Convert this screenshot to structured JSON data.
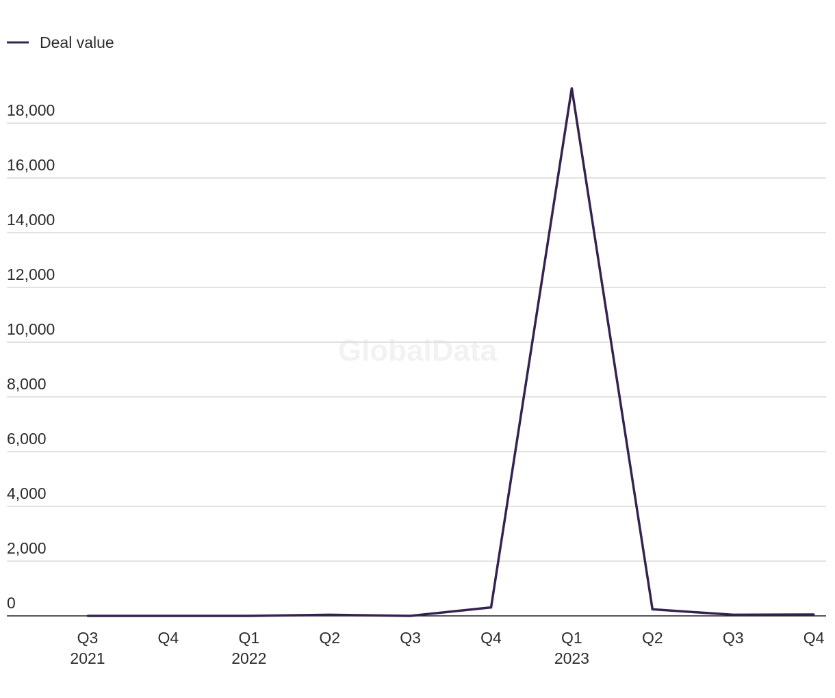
{
  "colors": {
    "series": "#35234f",
    "grid": "#d9d9d9",
    "baseline": "#1f1f1f",
    "text": "#2b2b2b",
    "watermark": "#f2f2f2"
  },
  "legend": {
    "label": "Deal value",
    "placement": "top-left"
  },
  "watermark": {
    "text": "GlobalData"
  },
  "chart_data": {
    "type": "line",
    "title": "",
    "xlabel": "",
    "ylabel": "",
    "categories": [
      "Q3 2021",
      "Q4 2021",
      "Q1 2022",
      "Q2 2022",
      "Q3 2022",
      "Q4 2022",
      "Q1 2023",
      "Q2 2023",
      "Q3 2023",
      "Q4 2023"
    ],
    "x_tick_labels": [
      {
        "quarter": "Q3",
        "year": "2021"
      },
      {
        "quarter": "Q4",
        "year": ""
      },
      {
        "quarter": "Q1",
        "year": "2022"
      },
      {
        "quarter": "Q2",
        "year": ""
      },
      {
        "quarter": "Q3",
        "year": ""
      },
      {
        "quarter": "Q4",
        "year": ""
      },
      {
        "quarter": "Q1",
        "year": "2023"
      },
      {
        "quarter": "Q2",
        "year": ""
      },
      {
        "quarter": "Q3",
        "year": ""
      },
      {
        "quarter": "Q4",
        "year": ""
      }
    ],
    "series": [
      {
        "name": "Deal value",
        "values": [
          0,
          0,
          0,
          40,
          0,
          310,
          19280,
          240,
          40,
          50
        ]
      }
    ],
    "ylim": [
      0,
      19500
    ],
    "y_ticks": [
      0,
      2000,
      4000,
      6000,
      8000,
      10000,
      12000,
      14000,
      16000,
      18000
    ],
    "y_tick_labels": [
      "0",
      "2,000",
      "4,000",
      "6,000",
      "8,000",
      "10,000",
      "12,000",
      "14,000",
      "16,000",
      "18,000"
    ],
    "grid": true,
    "legend_position": "top-left"
  }
}
